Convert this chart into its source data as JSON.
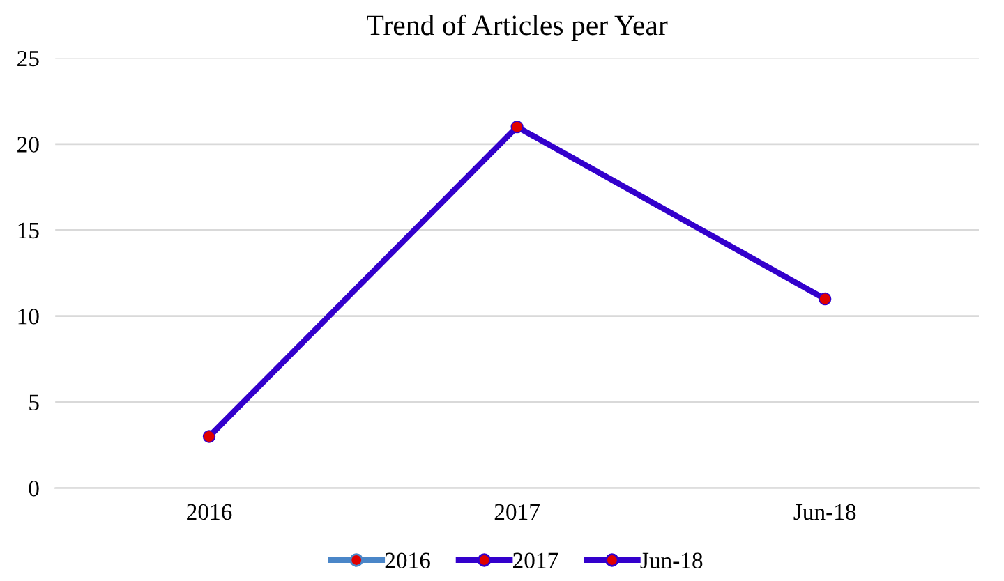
{
  "chart_data": {
    "type": "line",
    "title": "Trend of Articles per Year",
    "categories": [
      "2016",
      "2017",
      "Jun-18"
    ],
    "series": [
      {
        "color": "#3300cc",
        "values": [
          3,
          21,
          11
        ],
        "colors": [
          "#4a86c8",
          "#3300cc",
          "#3300cc"
        ]
      }
    ],
    "ylim": [
      0,
      25
    ],
    "yticks": [
      0,
      5,
      10,
      15,
      20,
      25
    ],
    "grid": "y",
    "marker": "circle",
    "line_style": "solid"
  }
}
